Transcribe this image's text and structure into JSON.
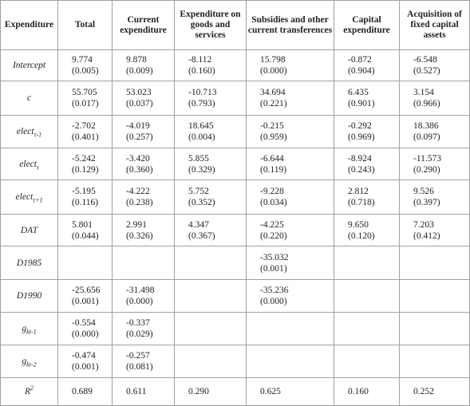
{
  "table": {
    "header": [
      "Expenditure",
      "Total",
      "Current expenditure",
      "Expenditure on goods and services",
      "Subsidies and other current transferences",
      "Capital expenditure",
      "Acquisition of fixed capital assets"
    ],
    "rows": [
      {
        "label": {
          "text": "Intercept"
        },
        "cells": [
          [
            "9.774",
            "(0.005)"
          ],
          [
            "9.878",
            "(0.009)"
          ],
          [
            "-8.112",
            "(0.160)"
          ],
          [
            "15.798",
            "(0.000)"
          ],
          [
            "-0.872",
            "(0.904)"
          ],
          [
            "-6.548",
            "(0.527)"
          ]
        ]
      },
      {
        "label": {
          "text": "c"
        },
        "cells": [
          [
            "55.705",
            "(0.017)"
          ],
          [
            "53.023",
            "(0.037)"
          ],
          [
            "-10.713",
            "(0.793)"
          ],
          [
            "34.694",
            "(0.221)"
          ],
          [
            "6.435",
            "(0.901)"
          ],
          [
            "3.154",
            "(0.966)"
          ]
        ]
      },
      {
        "label": {
          "text": "elect",
          "sub": "τ-1"
        },
        "cells": [
          [
            "-2.702",
            "(0.401)"
          ],
          [
            "-4.019",
            "(0.257)"
          ],
          [
            "18.645",
            "(0.004)"
          ],
          [
            "-0.215",
            "(0.959)"
          ],
          [
            "-0.292",
            "(0.969)"
          ],
          [
            "18.386",
            "(0.097)"
          ]
        ]
      },
      {
        "label": {
          "text": "elect",
          "sub": "τ"
        },
        "cells": [
          [
            "-5.242",
            "(0.129)"
          ],
          [
            "-3.420",
            "(0.360)"
          ],
          [
            "5.855",
            "(0.329)"
          ],
          [
            "-6.644",
            "(0.119)"
          ],
          [
            "-8.924",
            "(0.243)"
          ],
          [
            "-11.573",
            "(0.290)"
          ]
        ]
      },
      {
        "label": {
          "text": "elect",
          "sub": "τ+1"
        },
        "cells": [
          [
            "-5.195",
            "(0.116)"
          ],
          [
            "-4.222",
            "(0.238)"
          ],
          [
            "5.752",
            "(0.352)"
          ],
          [
            "-9.228",
            "(0.034)"
          ],
          [
            "2.812",
            "(0.718)"
          ],
          [
            "9.526",
            "(0.397)"
          ]
        ]
      },
      {
        "label": {
          "text": "DAT"
        },
        "cells": [
          [
            "5.801",
            "(0.044)"
          ],
          [
            "2.991",
            "(0.326)"
          ],
          [
            "4.347",
            "(0.367)"
          ],
          [
            "-4.225",
            "(0.220)"
          ],
          [
            "9.650",
            "(0.120)"
          ],
          [
            "7.203",
            "(0.412)"
          ]
        ]
      },
      {
        "label": {
          "text": "D1985"
        },
        "cells": [
          null,
          null,
          null,
          [
            "-35.032",
            "(0.001)"
          ],
          null,
          null
        ]
      },
      {
        "label": {
          "text": "D1990"
        },
        "cells": [
          [
            "-25.656",
            "(0.001)"
          ],
          [
            "-31.498",
            "(0.000)"
          ],
          null,
          [
            "-35.236",
            "(0.000)"
          ],
          null,
          null
        ]
      },
      {
        "label": {
          "text": "g",
          "sub": "kt-1"
        },
        "cells": [
          [
            "-0.554",
            "(0.000)"
          ],
          [
            "-0.337",
            "(0.029)"
          ],
          null,
          null,
          null,
          null
        ]
      },
      {
        "label": {
          "text": "g",
          "sub": "kt-2"
        },
        "cells": [
          [
            "-0.474",
            "(0.001)"
          ],
          [
            "-0.257",
            "(0.081)"
          ],
          null,
          null,
          null,
          null
        ]
      },
      {
        "label": {
          "text": "R",
          "sup": "2"
        },
        "cells": [
          [
            "0.689"
          ],
          [
            "0.611"
          ],
          [
            "0.290"
          ],
          [
            "0.625"
          ],
          [
            "0.160"
          ],
          [
            "0.252"
          ]
        ]
      }
    ]
  }
}
